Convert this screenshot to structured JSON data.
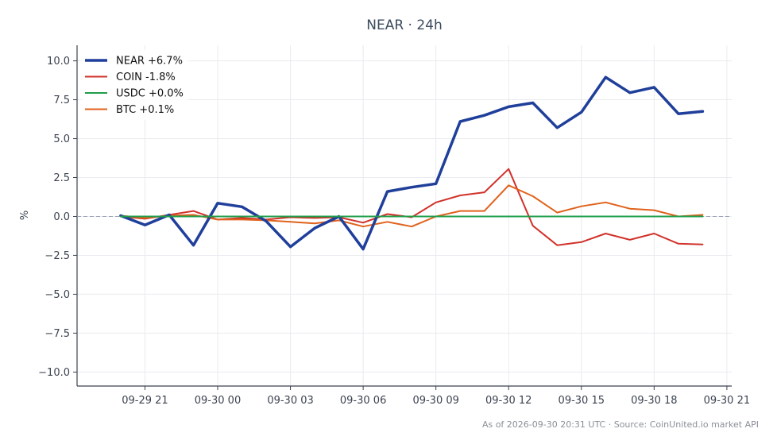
{
  "chart_data": {
    "type": "line",
    "title": "NEAR · 24h",
    "ylabel": "%",
    "xlabel": "",
    "ylim": [
      -10.9,
      11.0
    ],
    "yticks": [
      -10.0,
      -7.5,
      -5.0,
      -2.5,
      0.0,
      2.5,
      5.0,
      7.5,
      10.0
    ],
    "ytick_labels": [
      "−10.0",
      "−7.5",
      "−5.0",
      "−2.5",
      "0.0",
      "2.5",
      "5.0",
      "7.5",
      "10.0"
    ],
    "xlim": [
      "2026-09-29 18:12",
      "2026-09-30 21:12"
    ],
    "xticks": [
      "2026-09-29 21:00",
      "2026-09-30 00:00",
      "2026-09-30 03:00",
      "2026-09-30 06:00",
      "2026-09-30 09:00",
      "2026-09-30 12:00",
      "2026-09-30 15:00",
      "2026-09-30 18:00",
      "2026-09-30 21:00"
    ],
    "xtick_labels": [
      "09-29 21",
      "09-30 00",
      "09-30 03",
      "09-30 06",
      "09-30 09",
      "09-30 12",
      "09-30 15",
      "09-30 18",
      "09-30 21"
    ],
    "x": [
      "2026-09-29 20:00",
      "2026-09-29 21:00",
      "2026-09-29 22:00",
      "2026-09-29 23:00",
      "2026-09-30 00:00",
      "2026-09-30 01:00",
      "2026-09-30 02:00",
      "2026-09-30 03:00",
      "2026-09-30 04:00",
      "2026-09-30 05:00",
      "2026-09-30 06:00",
      "2026-09-30 07:00",
      "2026-09-30 08:00",
      "2026-09-30 09:00",
      "2026-09-30 10:00",
      "2026-09-30 11:00",
      "2026-09-30 12:00",
      "2026-09-30 13:00",
      "2026-09-30 14:00",
      "2026-09-30 15:00",
      "2026-09-30 16:00",
      "2026-09-30 17:00",
      "2026-09-30 18:00",
      "2026-09-30 19:00",
      "2026-09-30 20:00"
    ],
    "series": [
      {
        "name": "NEAR +6.7%",
        "color": "#1f3f9a",
        "width": "thick",
        "values": [
          0.05,
          -0.55,
          0.1,
          -1.85,
          0.85,
          0.62,
          -0.3,
          -1.95,
          -0.75,
          0.0,
          -2.1,
          1.6,
          1.88,
          2.1,
          6.1,
          6.5,
          7.05,
          7.3,
          5.7,
          6.7,
          8.95,
          7.95,
          8.3,
          6.6,
          6.75
        ]
      },
      {
        "name": "COIN -1.8%",
        "color": "#d1322b",
        "width": "normal",
        "values": [
          0.0,
          -0.15,
          0.1,
          0.35,
          -0.2,
          -0.1,
          -0.2,
          -0.05,
          -0.1,
          -0.05,
          -0.4,
          0.15,
          -0.05,
          0.9,
          1.35,
          1.55,
          3.05,
          -0.6,
          -1.85,
          -1.65,
          -1.1,
          -1.5,
          -1.1,
          -1.75,
          -1.8
        ]
      },
      {
        "name": "USDC +0.0%",
        "color": "#1e9e4a",
        "width": "normal",
        "values": [
          0.0,
          0.0,
          0.0,
          0.0,
          0.0,
          0.0,
          0.0,
          0.0,
          0.0,
          0.0,
          0.0,
          0.0,
          0.0,
          0.0,
          0.0,
          0.0,
          0.0,
          0.0,
          0.0,
          0.0,
          0.0,
          0.0,
          0.0,
          0.0,
          0.0
        ]
      },
      {
        "name": "BTC +0.1%",
        "color": "#e0621c",
        "width": "normal",
        "values": [
          0.05,
          -0.1,
          0.05,
          0.1,
          -0.2,
          -0.2,
          -0.25,
          -0.35,
          -0.45,
          -0.25,
          -0.65,
          -0.35,
          -0.65,
          0.0,
          0.35,
          0.35,
          2.0,
          1.3,
          0.25,
          0.65,
          0.9,
          0.5,
          0.4,
          0.0,
          0.1
        ]
      }
    ],
    "zero_line": true,
    "grid": true,
    "legend_position": "top-left",
    "footer": "As of 2026-09-30 20:31 UTC · Source: CoinUnited.io market API"
  }
}
